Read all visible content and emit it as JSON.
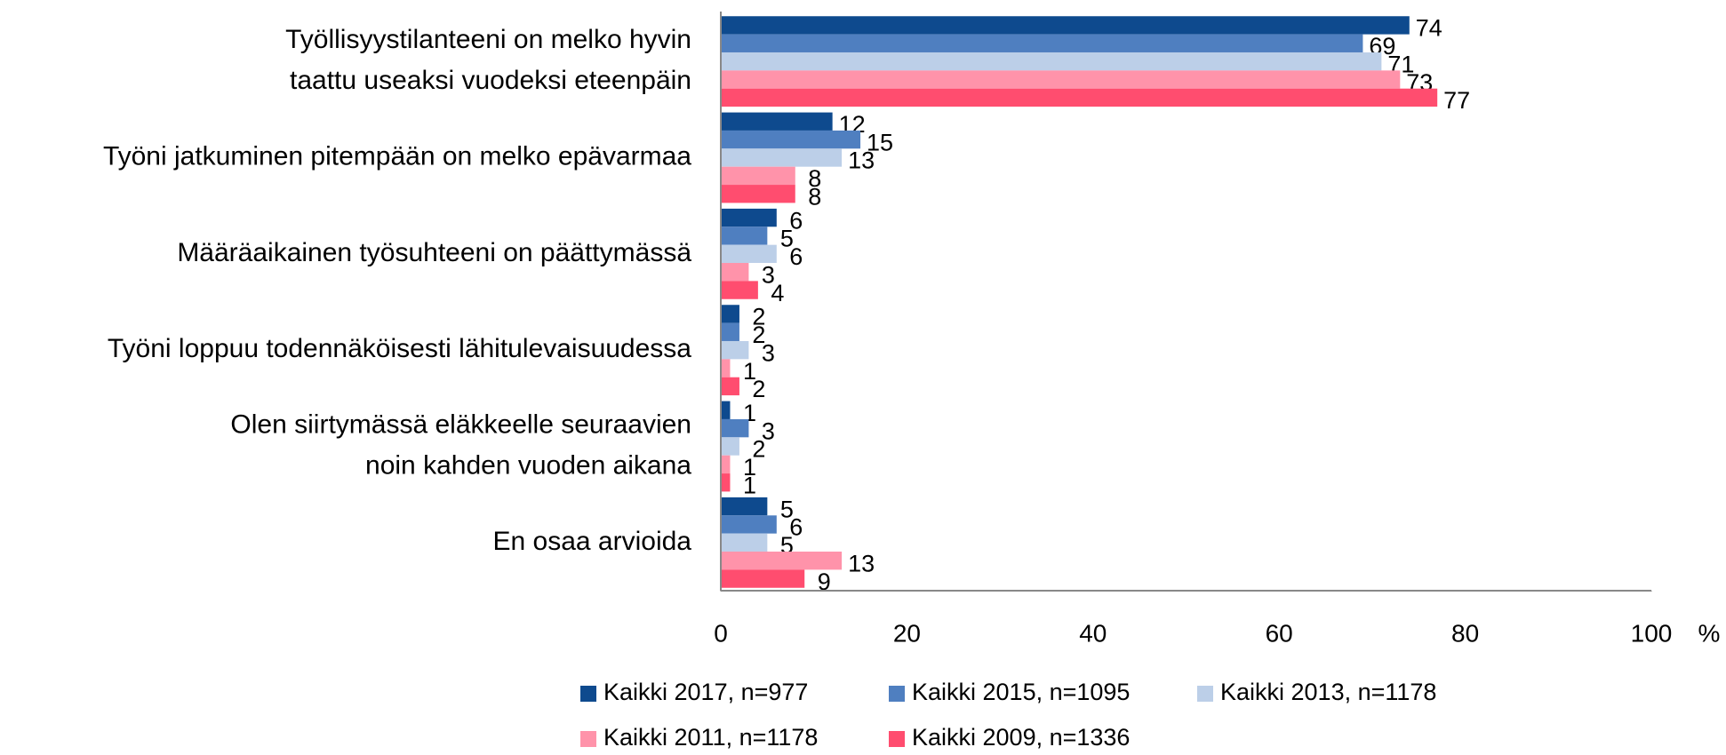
{
  "chart_data": {
    "type": "barh",
    "categories": [
      [
        "Työllisyystilanteeni on melko hyvin",
        "taattu useaksi vuodeksi  eteenpäin"
      ],
      [
        "Työni  jatkuminen pitempään on melko epävarmaa"
      ],
      [
        "Määräaikainen työsuhteeni on  päättymässä"
      ],
      [
        "Työni  loppuu todennäköisesti lähitulevaisuudessa"
      ],
      [
        "Olen siirtymässä eläkkeelle seuraavien",
        "noin kahden  vuoden  aikana"
      ],
      [
        "En osaa arvioida"
      ]
    ],
    "series": [
      {
        "name": "Kaikki 2017, n=977",
        "color": "#0e4a8e",
        "values": [
          74,
          12,
          6,
          2,
          1,
          5
        ]
      },
      {
        "name": "Kaikki 2015, n=1095",
        "color": "#4f7fc0",
        "values": [
          69,
          15,
          5,
          2,
          3,
          6
        ]
      },
      {
        "name": "Kaikki 2013, n=1178",
        "color": "#bccfe8",
        "values": [
          71,
          13,
          6,
          3,
          2,
          5
        ]
      },
      {
        "name": "Kaikki 2011, n=1178",
        "color": "#ff93aa",
        "values": [
          73,
          8,
          3,
          1,
          1,
          13
        ]
      },
      {
        "name": "Kaikki 2009, n=1336",
        "color": "#ff4d6f",
        "values": [
          77,
          8,
          4,
          2,
          1,
          9
        ]
      }
    ],
    "xlim": [
      0,
      100
    ],
    "xticks": [
      0,
      20,
      40,
      60,
      80,
      100
    ],
    "x_label": "%"
  }
}
